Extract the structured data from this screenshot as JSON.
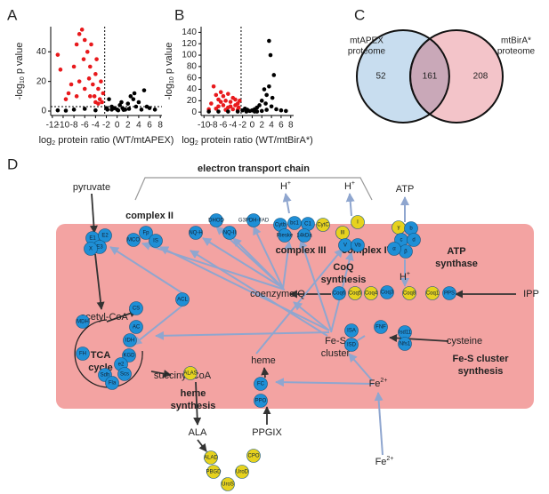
{
  "panels": [
    "A",
    "B",
    "C",
    "D"
  ],
  "chart_data": [
    {
      "type": "scatter",
      "xlabel": [
        "log",
        "2",
        " protein ratio (WT/mtAPEX)"
      ],
      "ylabel": [
        "-log",
        "10",
        " p value"
      ],
      "xlim": [
        -12.3,
        8.3
      ],
      "ylim": [
        -3,
        57
      ],
      "xticks": [
        -12,
        -10,
        -8,
        -6,
        -4,
        -2,
        0,
        2,
        4,
        6,
        8
      ],
      "yticks": [
        0,
        20,
        40
      ],
      "vline": -2.3,
      "hline": 3,
      "series": [
        {
          "color": "#e8191c",
          "x": [
            -11,
            -10.5,
            -9,
            -8,
            -7.5,
            -7,
            -6.5,
            -6,
            -6.2,
            -5.5,
            -5,
            -5.2,
            -4.8,
            -4.5,
            -4,
            -4.2,
            -3.8,
            -3.5,
            -3.2,
            -3,
            -2.8,
            -7,
            -8.5,
            -6,
            -5,
            -4,
            -3.5,
            -9.5,
            -7.5,
            -2.6
          ],
          "values": [
            38,
            28,
            12,
            30,
            45,
            52,
            55,
            48,
            35,
            40,
            30,
            22,
            45,
            18,
            25,
            10,
            35,
            15,
            8,
            20,
            6,
            20,
            18,
            15,
            10,
            6,
            5,
            8,
            10,
            12
          ]
        },
        {
          "color": "#000000",
          "x": [
            -1.5,
            -1,
            -0.5,
            0,
            0.5,
            1,
            1.5,
            2,
            2.5,
            3,
            3.5,
            4,
            5,
            3.2,
            -2,
            -1.8,
            0.2,
            1.2,
            2.2,
            6,
            7,
            -11,
            -9.5,
            -8,
            -4,
            -6,
            4.5,
            5.5,
            -1,
            0.8
          ],
          "values": [
            8,
            3,
            2,
            1,
            4,
            2,
            1,
            5,
            10,
            8,
            3,
            6,
            14,
            12,
            2,
            1,
            0.5,
            0.8,
            1.5,
            2,
            1,
            0.5,
            0.3,
            1,
            0.5,
            1.5,
            1,
            3,
            1,
            6
          ]
        }
      ]
    },
    {
      "type": "scatter",
      "xlabel": [
        "log",
        "2",
        " protein ratio (WT/mtBirA*)"
      ],
      "ylabel": [
        "-log",
        "10",
        " p value"
      ],
      "xlim": [
        -10.6,
        8.6
      ],
      "ylim": [
        -6,
        150
      ],
      "xticks": [
        -10,
        -8,
        -6,
        -4,
        -2,
        0,
        2,
        4,
        6,
        8
      ],
      "yticks": [
        0,
        20,
        40,
        60,
        80,
        100,
        120,
        140
      ],
      "vline": -2.3,
      "series": [
        {
          "color": "#e8191c",
          "x": [
            -8,
            -7.5,
            -7,
            -6.5,
            -6,
            -5.5,
            -5,
            -4.5,
            -4,
            -3.5,
            -3,
            -2.8,
            -6,
            -5,
            -4,
            -7,
            -8.5,
            -9,
            -3.5,
            -4.5,
            -6.5,
            -5.5,
            -3,
            -2.6,
            -7.5
          ],
          "values": [
            45,
            30,
            22,
            35,
            28,
            20,
            32,
            18,
            25,
            12,
            15,
            8,
            12,
            8,
            5,
            10,
            15,
            5,
            22,
            10,
            18,
            4,
            4,
            20,
            6
          ]
        },
        {
          "color": "#000000",
          "x": [
            3.5,
            3.8,
            4.5,
            2.5,
            3,
            2,
            1.5,
            1,
            0.5,
            0,
            -0.5,
            -1,
            -1.5,
            -2,
            2.8,
            4,
            5,
            6,
            7,
            -9,
            -7,
            -5,
            -3,
            1,
            2,
            3,
            4.2,
            -1.2,
            0.5,
            3.5
          ],
          "values": [
            125,
            100,
            65,
            40,
            30,
            20,
            12,
            8,
            5,
            3,
            2,
            4,
            6,
            3,
            15,
            10,
            5,
            3,
            2,
            1,
            1,
            1,
            1,
            1,
            2,
            4,
            25,
            1,
            1,
            45
          ]
        }
      ]
    },
    {
      "type": "venn",
      "sets": [
        {
          "label": [
            "mtAPEX",
            "proteome"
          ],
          "color": "#c8ddef"
        },
        {
          "label": [
            "mtBirA*",
            "proteome"
          ],
          "color": "#f3c4c9"
        }
      ],
      "overlap_color": "#c9a8b8",
      "values": [
        52,
        161,
        208
      ]
    }
  ],
  "diagram": {
    "title": "electron transport chain",
    "texts": [
      {
        "lines": [
          "pyruvate"
        ]
      },
      {
        "lines": [
          "acetyl-CoA"
        ]
      },
      {
        "lines": [
          "TCA",
          "cycle"
        ]
      },
      {
        "lines": [
          "succinyl-CoA"
        ]
      },
      {
        "lines": [
          "heme",
          "synthesis"
        ]
      },
      {
        "lines": [
          "ALA"
        ]
      },
      {
        "lines": [
          "PPGIX"
        ]
      },
      {
        "lines": [
          "heme"
        ]
      },
      {
        "lines": [
          "Fe-S",
          "cluster"
        ]
      },
      {
        "lines": [
          "cysteine"
        ]
      },
      {
        "lines": [
          "Fe-S cluster",
          "synthesis"
        ]
      },
      {
        "text": "Fe",
        "sup": "2+"
      },
      {
        "text": "Fe",
        "sup": "2+"
      },
      {
        "lines": [
          "coenzyme Q"
        ]
      },
      {
        "lines": [
          "CoQ",
          "synthesis"
        ]
      },
      {
        "lines": [
          "IPP"
        ]
      },
      {
        "lines": [
          "complex II"
        ]
      },
      {
        "lines": [
          "complex III"
        ]
      },
      {
        "lines": [
          "complex IV"
        ]
      },
      {
        "lines": [
          "ATP",
          "synthase"
        ]
      },
      {
        "lines": [
          "ATP"
        ]
      },
      {
        "text": "H",
        "sup": "+"
      },
      {
        "text": "H",
        "sup": "+"
      },
      {
        "text": "H",
        "sup": "+"
      }
    ],
    "nodes": [
      {
        "label": "E1",
        "color": "#1f8fd6"
      },
      {
        "label": "E2",
        "color": "#1f8fd6"
      },
      {
        "label": "E3",
        "color": "#1f8fd6"
      },
      {
        "label": "X",
        "color": "#1f8fd6"
      },
      {
        "label": "MCO",
        "color": "#1f8fd6"
      },
      {
        "label": "Fp",
        "color": "#1f8fd6"
      },
      {
        "label": "IS",
        "color": "#1f8fd6"
      },
      {
        "label": "NQ-H",
        "color": "#1f8fd6"
      },
      {
        "label": "NQ-II",
        "color": "#1f8fd6"
      },
      {
        "label": "DHOD",
        "color": "#1f8fd6"
      },
      {
        "label": "G3PDH-FAD",
        "color": "#1f8fd6"
      },
      {
        "label": "Cytb",
        "color": "#1f8fd6"
      },
      {
        "label": "bc1",
        "color": "#1f8fd6"
      },
      {
        "label": "C1",
        "color": "#1f8fd6"
      },
      {
        "label": "Rieske",
        "color": "#1f8fd6"
      },
      {
        "label": "14kDa",
        "color": "#1f8fd6"
      },
      {
        "label": "CytC",
        "color": "#e6d21e"
      },
      {
        "label": "III",
        "color": "#e6d21e"
      },
      {
        "label": "I",
        "color": "#e6d21e"
      },
      {
        "label": "V",
        "color": "#1f8fd6"
      },
      {
        "label": "Vb",
        "color": "#1f8fd6"
      },
      {
        "label": "γ",
        "color": "#e6d21e"
      },
      {
        "label": "b",
        "color": "#1f8fd6"
      },
      {
        "label": "c",
        "color": "#1f8fd6"
      },
      {
        "label": "d",
        "color": "#1f8fd6"
      },
      {
        "label": "β",
        "color": "#1f8fd6"
      },
      {
        "label": "α",
        "color": "#1f8fd6"
      },
      {
        "label": "CS",
        "color": "#1f8fd6"
      },
      {
        "label": "AC",
        "color": "#1f8fd6"
      },
      {
        "label": "IDH",
        "color": "#1f8fd6"
      },
      {
        "label": "KGD",
        "color": "#1f8fd6"
      },
      {
        "label": "e2",
        "color": "#1f8fd6"
      },
      {
        "label": "Scs",
        "color": "#1f8fd6"
      },
      {
        "label": "Sdh",
        "color": "#1f8fd6"
      },
      {
        "label": "Fla",
        "color": "#1f8fd6"
      },
      {
        "label": "FH",
        "color": "#1f8fd6"
      },
      {
        "label": "MDH",
        "color": "#1f8fd6"
      },
      {
        "label": "ACL",
        "color": "#1f8fd6"
      },
      {
        "label": "ALAS",
        "color": "#e6d21e"
      },
      {
        "label": "ALAD",
        "color": "#e6d21e"
      },
      {
        "label": "PBGD",
        "color": "#e6d21e"
      },
      {
        "label": "UroS",
        "color": "#e6d21e"
      },
      {
        "label": "UroD",
        "color": "#e6d21e"
      },
      {
        "label": "CPO",
        "color": "#e6d21e"
      },
      {
        "label": "PPO",
        "color": "#1f8fd6"
      },
      {
        "label": "FC",
        "color": "#1f8fd6"
      },
      {
        "label": "ISA",
        "color": "#1f8fd6"
      },
      {
        "label": "ISD",
        "color": "#1f8fd6"
      },
      {
        "label": "FNF",
        "color": "#1f8fd6"
      },
      {
        "label": "Isd11",
        "color": "#1f8fd6"
      },
      {
        "label": "Nfs1",
        "color": "#1f8fd6"
      },
      {
        "label": "Coq6",
        "color": "#1f8fd6"
      },
      {
        "label": "Coq5",
        "color": "#e6d21e"
      },
      {
        "label": "Coq4",
        "color": "#e6d21e"
      },
      {
        "label": "Coq3",
        "color": "#1f8fd6"
      },
      {
        "label": "Coq8",
        "color": "#e6d21e"
      },
      {
        "label": "Coq1",
        "color": "#e6d21e"
      },
      {
        "label": "PPS",
        "color": "#1f8fd6"
      }
    ]
  }
}
